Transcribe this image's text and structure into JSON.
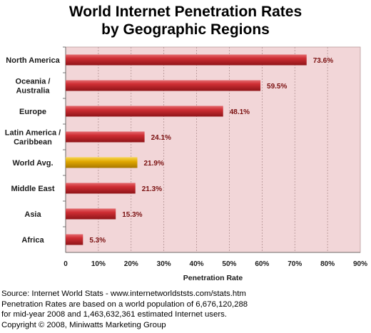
{
  "chart_data": {
    "type": "bar",
    "orientation": "horizontal",
    "title": "World Internet Penetration Rates",
    "subtitle": "by Geographic Regions",
    "categories": [
      [
        "North America"
      ],
      [
        "Oceania  /",
        "Australia"
      ],
      [
        "Europe"
      ],
      [
        "Latin America /",
        "Caribbean"
      ],
      [
        "World Avg."
      ],
      [
        "Middle East"
      ],
      [
        "Asia"
      ],
      [
        "Africa"
      ]
    ],
    "values": [
      73.6,
      59.5,
      48.1,
      24.1,
      21.9,
      21.3,
      15.3,
      5.3
    ],
    "data_labels": [
      "73.6%",
      "59.5%",
      "48.1%",
      "24.1%",
      "21.9%",
      "21.3%",
      "15.3%",
      "5.3%"
    ],
    "highlight_index": 4,
    "xlabel": "Penetration Rate",
    "ylabel": "",
    "xlim": [
      0,
      90
    ],
    "xticks": [
      0,
      10,
      20,
      30,
      40,
      50,
      60,
      70,
      80,
      90
    ],
    "xtick_labels": [
      "0",
      "10%",
      "20%",
      "30%",
      "40%",
      "50%",
      "60%",
      "70%",
      "80%",
      "90%"
    ],
    "grid": true,
    "legend": "none",
    "colors": {
      "bar": "#c6262c",
      "highlight_bar": "#e0a800",
      "plot_background": "#f2d6d8",
      "gridline": "#a98888",
      "data_label": "#7a1010"
    }
  },
  "footer": {
    "lines": [
      "Source: Internet World Stats - www.internetworldststs.com/stats.htm",
      "Penetration Rates are based on a world population of 6,676,120,288",
      "for mid-year 2008 and 1,463,632,361 estimated Internet users.",
      "Copyright © 2008, Miniwatts Marketing Group"
    ]
  }
}
